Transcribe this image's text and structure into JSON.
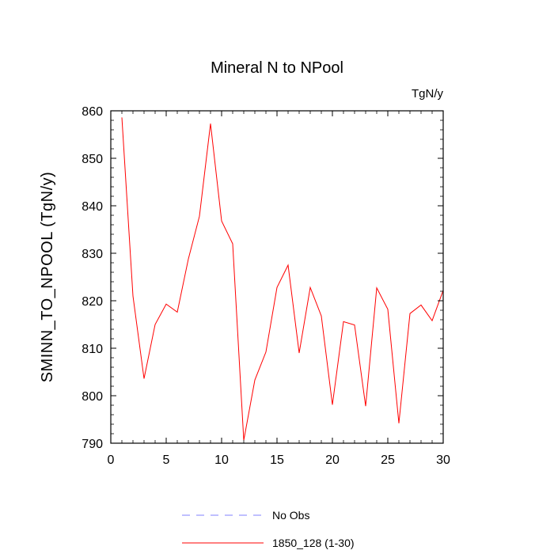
{
  "chart_data": {
    "type": "line",
    "title": "Mineral N to NPool",
    "units": "TgN/y",
    "xlabel": "",
    "ylabel": "SMINN_TO_NPOOL  (TgN/y)",
    "xlim": [
      0,
      30
    ],
    "ylim": [
      790,
      860
    ],
    "xticks": [
      0,
      5,
      10,
      15,
      20,
      25,
      30
    ],
    "yticks": [
      790,
      800,
      810,
      820,
      830,
      840,
      850,
      860
    ],
    "grid": false,
    "legend_position": "bottom",
    "series": [
      {
        "name": "No Obs",
        "color": "#8080ff",
        "style": "dashed",
        "x": [],
        "values": []
      },
      {
        "name": "1850_128 (1-30)",
        "color": "#ff0000",
        "style": "solid",
        "x": [
          1,
          2,
          3,
          4,
          5,
          6,
          7,
          8,
          9,
          10,
          11,
          12,
          13,
          14,
          15,
          16,
          17,
          18,
          19,
          20,
          21,
          22,
          23,
          24,
          25,
          26,
          27,
          28,
          29,
          30
        ],
        "values": [
          858.6,
          821.0,
          803.6,
          815.0,
          819.3,
          817.6,
          828.8,
          837.8,
          857.3,
          836.8,
          832.0,
          790.6,
          803.3,
          809.2,
          822.8,
          827.5,
          809.0,
          822.8,
          816.8,
          798.1,
          815.6,
          814.9,
          797.8,
          822.7,
          818.2,
          794.2,
          817.3,
          819.1,
          815.8,
          822.2
        ]
      }
    ]
  }
}
